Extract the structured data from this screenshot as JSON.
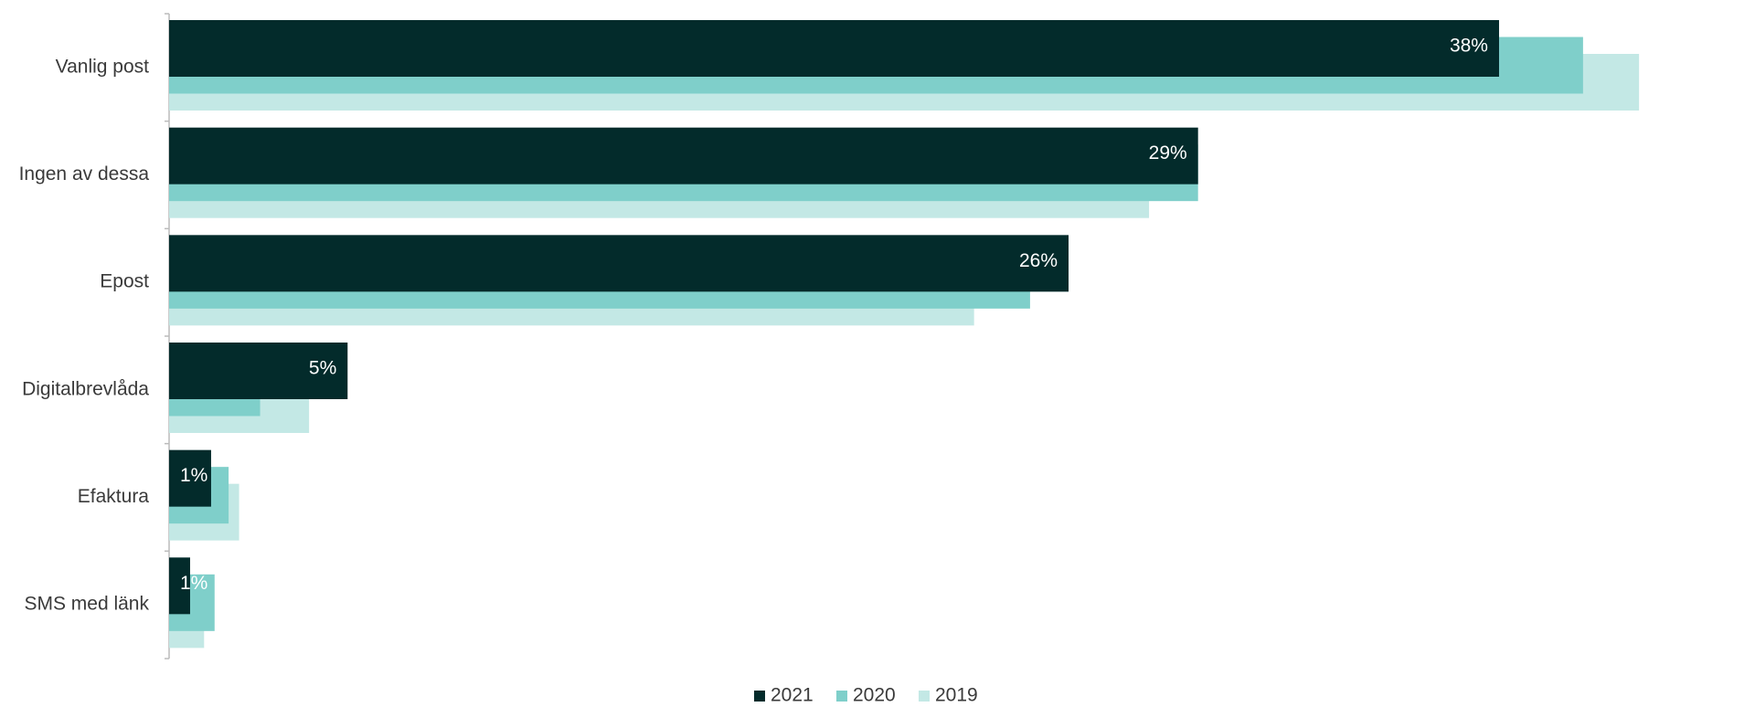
{
  "chart_data": {
    "type": "hbar",
    "categories": [
      "Vanlig post",
      "Ingen av dessa",
      "Epost",
      "Digitalbrevlåda",
      "Efaktura",
      "SMS med länk"
    ],
    "series": [
      {
        "name": "2021",
        "color": "#032b2b",
        "values": [
          38,
          29.4,
          25.7,
          5.1,
          1.2,
          0.6
        ],
        "value_labels": [
          "38%",
          "29%",
          "26%",
          "5%",
          "1%",
          "1%"
        ]
      },
      {
        "name": "2020",
        "color": "#7fcfca",
        "values": [
          40.4,
          29.4,
          24.6,
          2.6,
          1.7,
          1.3
        ]
      },
      {
        "name": "2019",
        "color": "#c3e8e5",
        "values": [
          42,
          28,
          23,
          4,
          2,
          1
        ]
      }
    ],
    "xlim": [
      0,
      45
    ],
    "legend": "bottom"
  }
}
